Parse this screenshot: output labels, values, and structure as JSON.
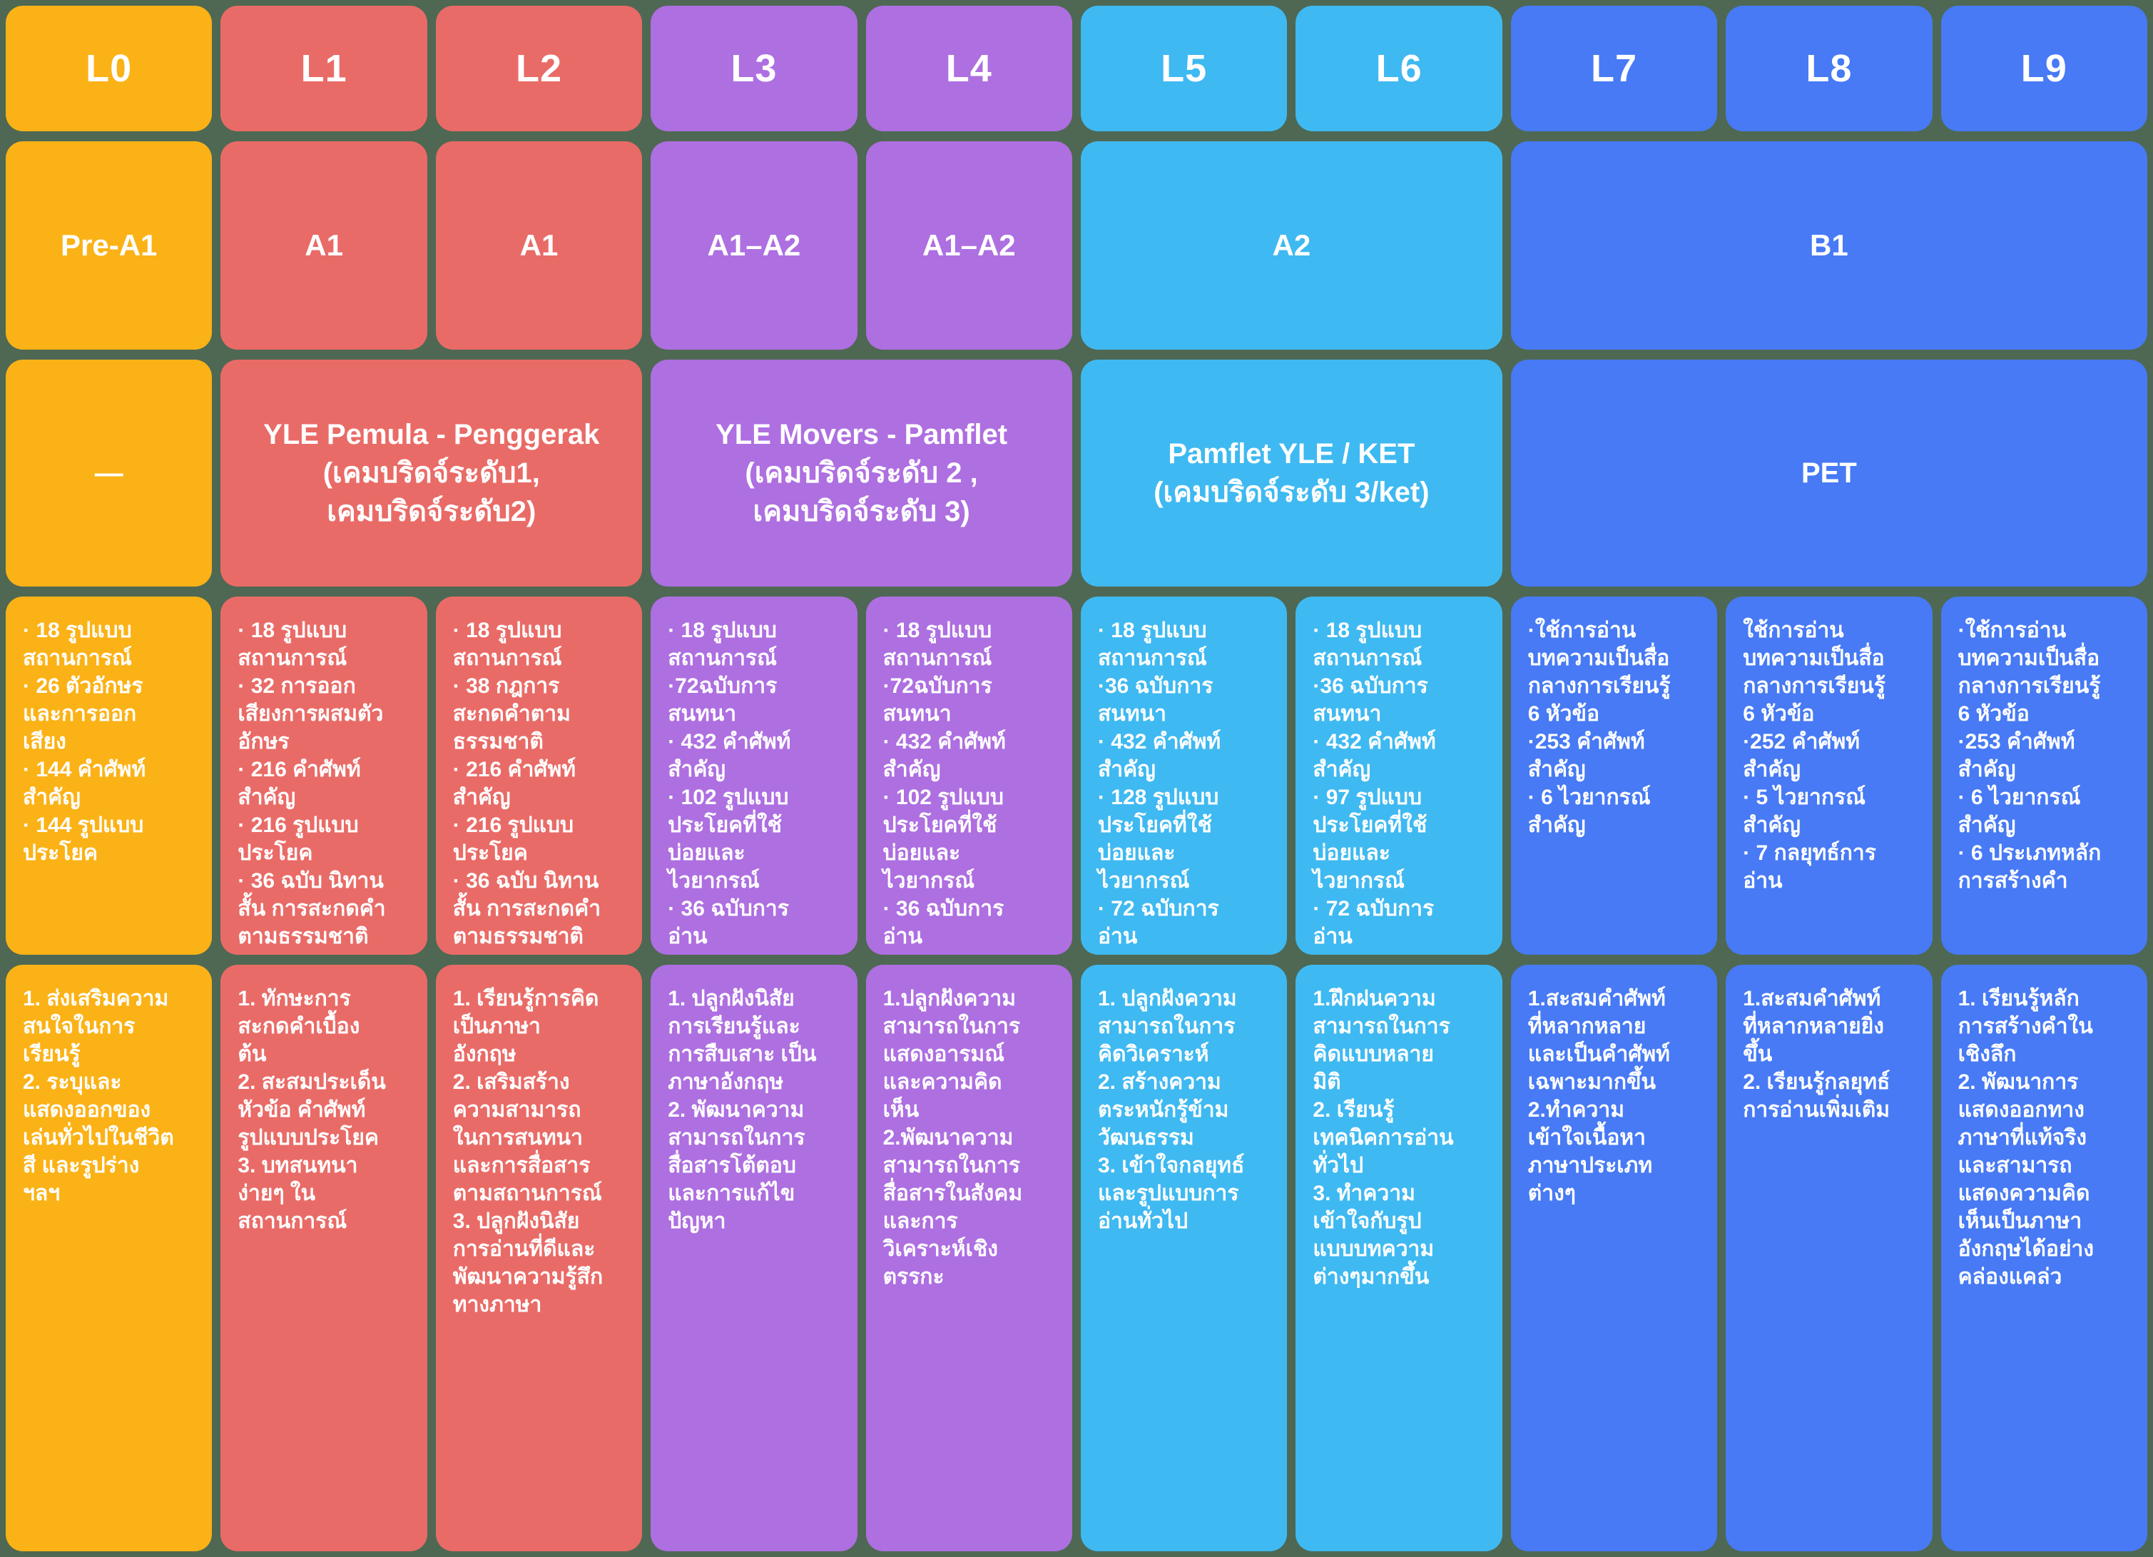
{
  "palette": {
    "page_background": "#4E6853",
    "text": "#FFFFFF",
    "L0": "#FBB216",
    "L1_L2": "#E96B67",
    "L3_L4": "#AE6FE1",
    "L5_L6": "#3FB9F1",
    "L7_L9": "#477AF4"
  },
  "cefr_row": [
    "Pre-A1",
    "A1",
    "A1",
    "A1–A2",
    "A1–A2",
    "A2",
    "B1"
  ],
  "exam_row": [
    "—",
    "YLE Pemula - Penggerak\n(เคมบริดจ์ระดับ1,\nเคมบริดจ์ระดับ2)",
    "YLE Movers - Pamflet\n(เคมบริดจ์ระดับ 2 ,\nเคมบริดจ์ระดับ 3)",
    "Pamflet YLE / KET\n(เคมบริดจ์ระดับ 3/ket)",
    "PET"
  ],
  "levels": [
    {
      "label": "L0",
      "content": "· 18 รูปแบบ\nสถานการณ์\n· 26 ตัวอักษร\nและการออก\nเสียง\n· 144 คำศัพท์\nสำคัญ\n· 144 รูปแบบ\nประโยค",
      "outcomes": "1. ส่งเสริมความ\nสนใจในการ\nเรียนรู้\n2. ระบุและ\nแสดงออกของ\nเล่นทั่วไปในชีวิต\nสี และรูปร่าง\nฯลฯ"
    },
    {
      "label": "L1",
      "content": "· 18 รูปแบบ\nสถานการณ์\n· 32 การออก\nเสียงการผสมตัว\nอักษร\n· 216 คำศัพท์\nสำคัญ\n· 216 รูปแบบ\nประโยค\n· 36 ฉบับ นิทาน\nสั้น การสะกดคำ\nตามธรรมชาติ",
      "outcomes": "1. ทักษะการ\nสะกดคำเบื้อง\nต้น\n2. สะสมประเด็น\nหัวข้อ คำศัพท์\nรูปแบบประโยค\n3. บทสนทนา\nง่ายๆ ใน\nสถานการณ์"
    },
    {
      "label": "L2",
      "content": "· 18 รูปแบบ\nสถานการณ์\n· 38 กฎการ\nสะกดคำตาม\nธรรมชาติ\n· 216 คำศัพท์\nสำคัญ\n· 216 รูปแบบ\nประโยค\n· 36 ฉบับ นิทาน\nสั้น การสะกดคำ\nตามธรรมชาติ",
      "outcomes": "1. เรียนรู้การคิด\nเป็นภาษา\nอังกฤษ\n2. เสริมสร้าง\nความสามารถ\nในการสนทนา\nและการสื่อสาร\nตามสถานการณ์\n3. ปลูกฝังนิสัย\nการอ่านที่ดีและ\nพัฒนาความรู้สึก\nทางภาษา"
    },
    {
      "label": "L3",
      "content": "· 18 รูปแบบ\nสถานการณ์\n·72ฉบับการ\nสนทนา\n· 432 คำศัพท์\nสำคัญ\n· 102 รูปแบบ\nประโยคที่ใช้\nบ่อยและ\nไวยากรณ์\n· 36 ฉบับการ\nอ่าน",
      "outcomes": "1. ปลูกฝังนิสัย\nการเรียนรู้และ\nการสืบเสาะ เป็น\nภาษาอังกฤษ\n2. พัฒนาความ\nสามารถในการ\nสื่อสารโต้ตอบ\nและการแก้ไข\nปัญหา"
    },
    {
      "label": "L4",
      "content": "· 18 รูปแบบ\nสถานการณ์\n·72ฉบับการ\nสนทนา\n· 432 คำศัพท์\nสำคัญ\n· 102 รูปแบบ\nประโยคที่ใช้\nบ่อยและ\nไวยากรณ์\n· 36 ฉบับการ\nอ่าน",
      "outcomes": "1.ปลูกฝังความ\nสามารถในการ\nแสดงอารมณ์\nและความคิด\nเห็น\n2.พัฒนาความ\nสามารถในการ\nสื่อสารในสังคม\nและการ\nวิเคราะห์เชิง\nตรรกะ"
    },
    {
      "label": "L5",
      "content": "· 18 รูปแบบ\nสถานการณ์\n·36 ฉบับการ\nสนทนา\n· 432 คำศัพท์\nสำคัญ\n· 128 รูปแบบ\nประโยคที่ใช้\nบ่อยและ\nไวยากรณ์\n· 72 ฉบับการ\nอ่าน",
      "outcomes": "1. ปลูกฝังความ\nสามารถในการ\nคิดวิเคราะห์\n2. สร้างความ\nตระหนักรู้ข้าม\nวัฒนธรรม\n3. เข้าใจกลยุทธ์\nและรูปแบบการ\nอ่านทั่วไป"
    },
    {
      "label": "L6",
      "content": "· 18 รูปแบบ\nสถานการณ์\n·36 ฉบับการ\nสนทนา\n· 432 คำศัพท์\nสำคัญ\n· 97 รูปแบบ\nประโยคที่ใช้\nบ่อยและ\nไวยากรณ์\n· 72 ฉบับการ\nอ่าน",
      "outcomes": "1.ฝึกฝนความ\nสามารถในการ\nคิดแบบหลาย\nมิติ\n2. เรียนรู้\nเทคนิคการอ่าน\nทั่วไป\n3. ทำความ\nเข้าใจกับรูป\nแบบบทความ\nต่างๆมากขึ้น"
    },
    {
      "label": "L7",
      "content": "·ใช้การอ่าน\nบทความเป็นสื่อ\nกลางการเรียนรู้\n6 หัวข้อ\n·253 คำศัพท์\nสำคัญ\n· 6 ไวยากรณ์\nสำคัญ",
      "outcomes": "1.สะสมคำศัพท์\nที่หลากหลาย\nและเป็นคำศัพท์\nเฉพาะมากขึ้น\n2.ทำความ\nเข้าใจเนื้อหา\nภาษาประเภท\nต่างๆ"
    },
    {
      "label": "L8",
      "content": "ใช้การอ่าน\nบทความเป็นสื่อ\nกลางการเรียนรู้\n6 หัวข้อ\n·252 คำศัพท์\nสำคัญ\n· 5 ไวยากรณ์\nสำคัญ\n· 7 กลยุทธ์การ\nอ่าน",
      "outcomes": "1.สะสมคำศัพท์\nที่หลากหลายยิ่ง\nขึ้น\n2. เรียนรู้กลยุทธ์\nการอ่านเพิ่มเติม"
    },
    {
      "label": "L9",
      "content": "·ใช้การอ่าน\nบทความเป็นสื่อ\nกลางการเรียนรู้\n6 หัวข้อ\n·253 คำศัพท์\nสำคัญ\n· 6 ไวยากรณ์\nสำคัญ\n· 6 ประเภทหลัก\nการสร้างคำ",
      "outcomes": "1. เรียนรู้หลัก\nการสร้างคำใน\nเชิงลึก\n2. พัฒนาการ\nแสดงออกทาง\nภาษาที่แท้จริง\nและสามารถ\nแสดงความคิด\nเห็นเป็นภาษา\nอังกฤษได้อย่าง\nคล่องแคล่ว"
    }
  ]
}
